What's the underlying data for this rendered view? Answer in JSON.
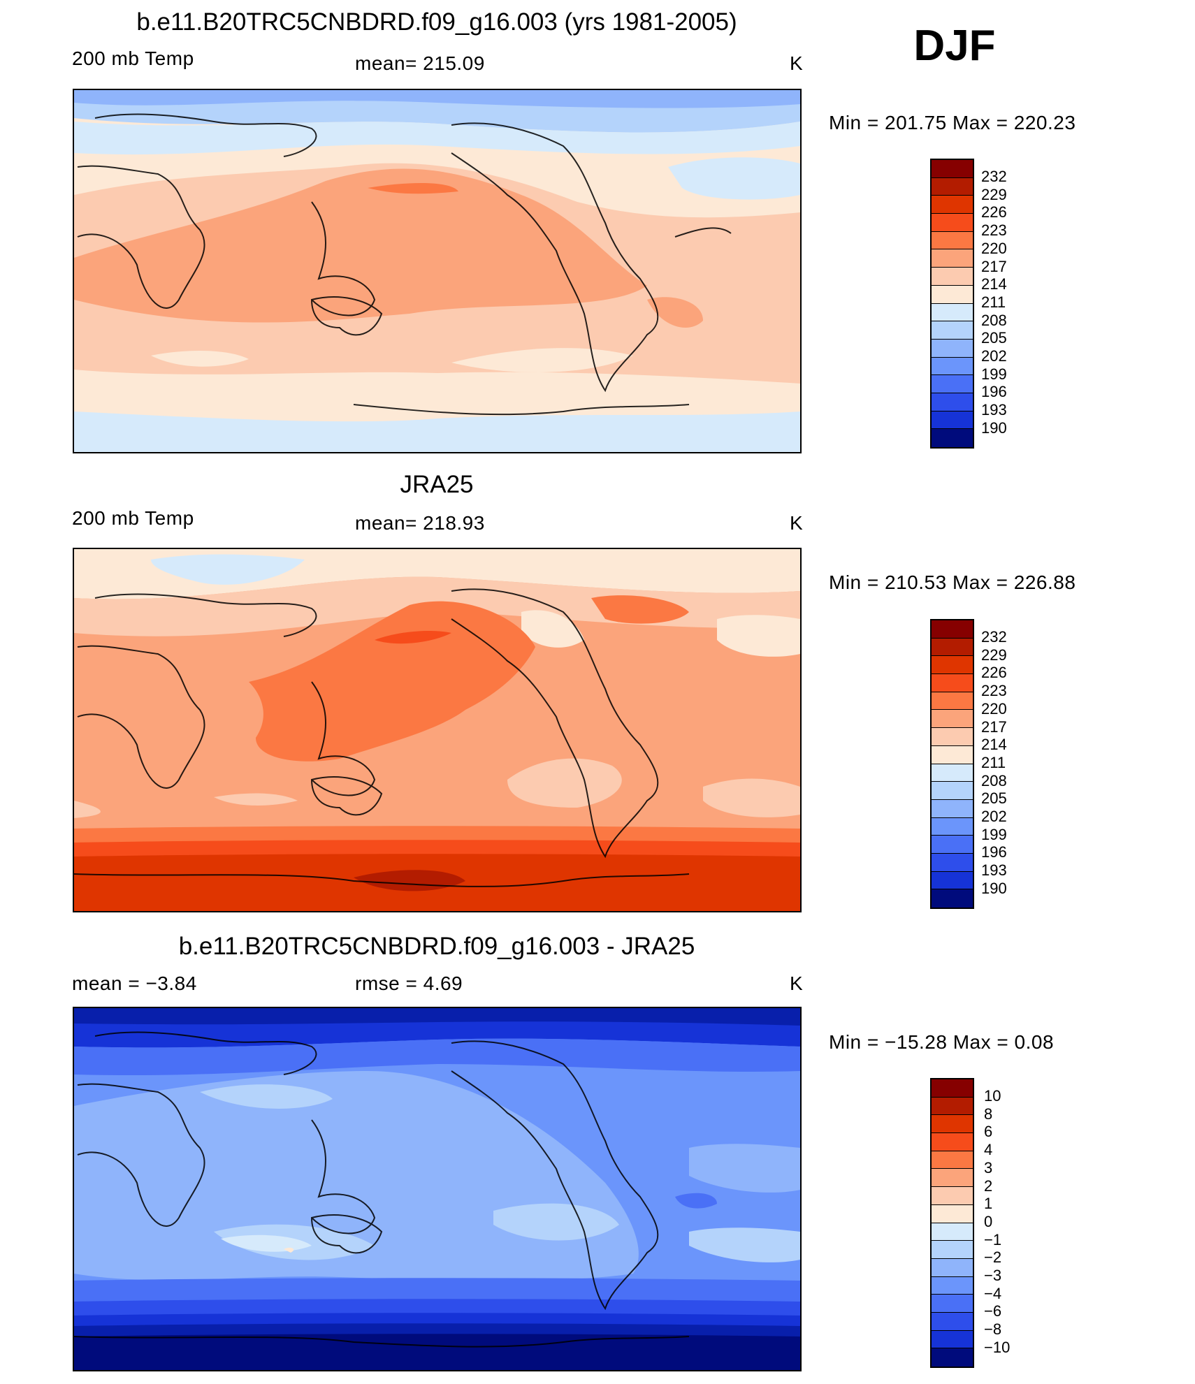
{
  "season": "DJF",
  "palette_warm": [
    "#860000",
    "#B31C00",
    "#DF3500",
    "#F64C1B",
    "#FB7843",
    "#FBA47B",
    "#FCCBB0",
    "#FDE9D6"
  ],
  "palette_cool": [
    "#D6EAFB",
    "#B4D3FB",
    "#8FB4FB",
    "#6B95FB",
    "#4A70F6",
    "#2E4EEB",
    "#1633D7",
    "#081FAB",
    "#000B7C"
  ],
  "panels": [
    {
      "title": "b.e11.B20TRC5CNBDRD.f09_g16.003 (yrs 1981-2005)",
      "left_label": "200 mb Temp",
      "center_label": "mean= 215.09",
      "right_label": "K",
      "minmax": "Min = 201.75 Max = 220.23",
      "colorbar": [
        "232",
        "229",
        "226",
        "223",
        "220",
        "217",
        "214",
        "211",
        "208",
        "205",
        "202",
        "199",
        "196",
        "193",
        "190"
      ],
      "map_alt": "Model DJF 200 mb temperature field"
    },
    {
      "title": "JRA25",
      "left_label": "200 mb Temp",
      "center_label": "mean= 218.93",
      "right_label": "K",
      "minmax": "Min = 210.53 Max = 226.88",
      "colorbar": [
        "232",
        "229",
        "226",
        "223",
        "220",
        "217",
        "214",
        "211",
        "208",
        "205",
        "202",
        "199",
        "196",
        "193",
        "190"
      ],
      "map_alt": "JRA25 reanalysis DJF 200 mb temperature field"
    },
    {
      "title": "b.e11.B20TRC5CNBDRD.f09_g16.003 - JRA25",
      "left_label": "mean = −3.84",
      "center_label": "rmse = 4.69",
      "right_label": "K",
      "minmax": "Min = −15.28 Max = 0.08",
      "colorbar": [
        "10",
        "8",
        "6",
        "4",
        "3",
        "2",
        "1",
        "0",
        "−1",
        "−2",
        "−3",
        "−4",
        "−6",
        "−8",
        "−10"
      ],
      "map_alt": "Model minus JRA25 difference field"
    }
  ]
}
